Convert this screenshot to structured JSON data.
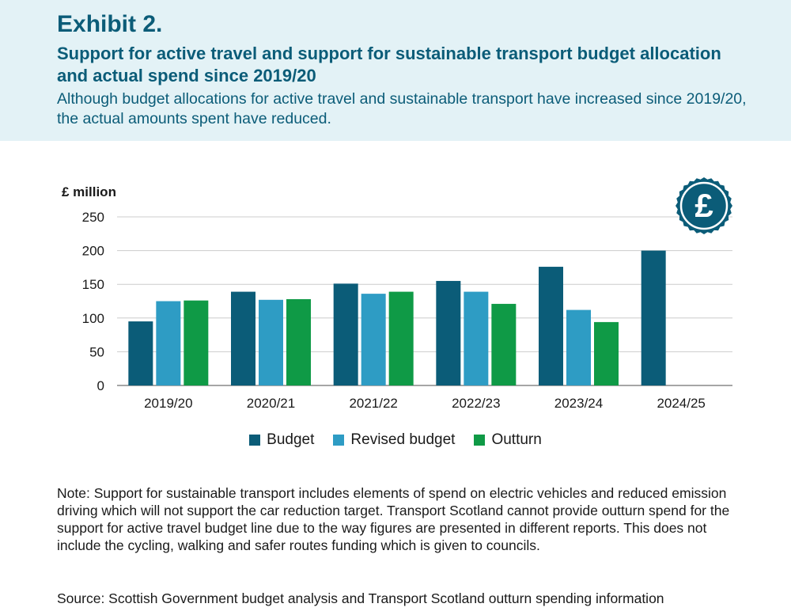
{
  "header": {
    "exhibit": "Exhibit 2.",
    "title": "Support for active travel and support for sustainable transport budget allocation and actual spend since 2019/20",
    "subtitle": "Although budget allocations for active travel and sustainable transport have increased since 2019/20, the actual amounts spent have reduced."
  },
  "icon": {
    "name": "pound-coin-icon",
    "symbol": "£",
    "color": "#0b5c78"
  },
  "colors": {
    "budget": "#0b5c78",
    "revised": "#2e9cc4",
    "outturn": "#0f9a46",
    "grid": "#cccccc",
    "axis": "#888888"
  },
  "chart_data": {
    "type": "bar",
    "ylabel": "£ million",
    "xlabel": "",
    "ylim": [
      0,
      250
    ],
    "yticks": [
      0,
      50,
      100,
      150,
      200,
      250
    ],
    "grid": true,
    "categories": [
      "2019/20",
      "2020/21",
      "2021/22",
      "2022/23",
      "2023/24",
      "2024/25"
    ],
    "series": [
      {
        "name": "Budget",
        "values": [
          95,
          139,
          151,
          155,
          176,
          200
        ]
      },
      {
        "name": "Revised budget",
        "values": [
          125,
          127,
          136,
          139,
          112,
          null
        ]
      },
      {
        "name": "Outturn",
        "values": [
          126,
          128,
          139,
          121,
          94,
          null
        ]
      }
    ],
    "legend_position": "bottom"
  },
  "note": "Note: Support for sustainable transport includes elements of spend on electric vehicles and reduced emission driving which will not support the car reduction target. Transport Scotland cannot provide outturn spend for the support for active travel budget line due to the way figures are presented in different reports. This does not include the cycling, walking and safer routes funding which is given to councils.",
  "source": "Source: Scottish Government budget analysis and Transport Scotland outturn spending information"
}
